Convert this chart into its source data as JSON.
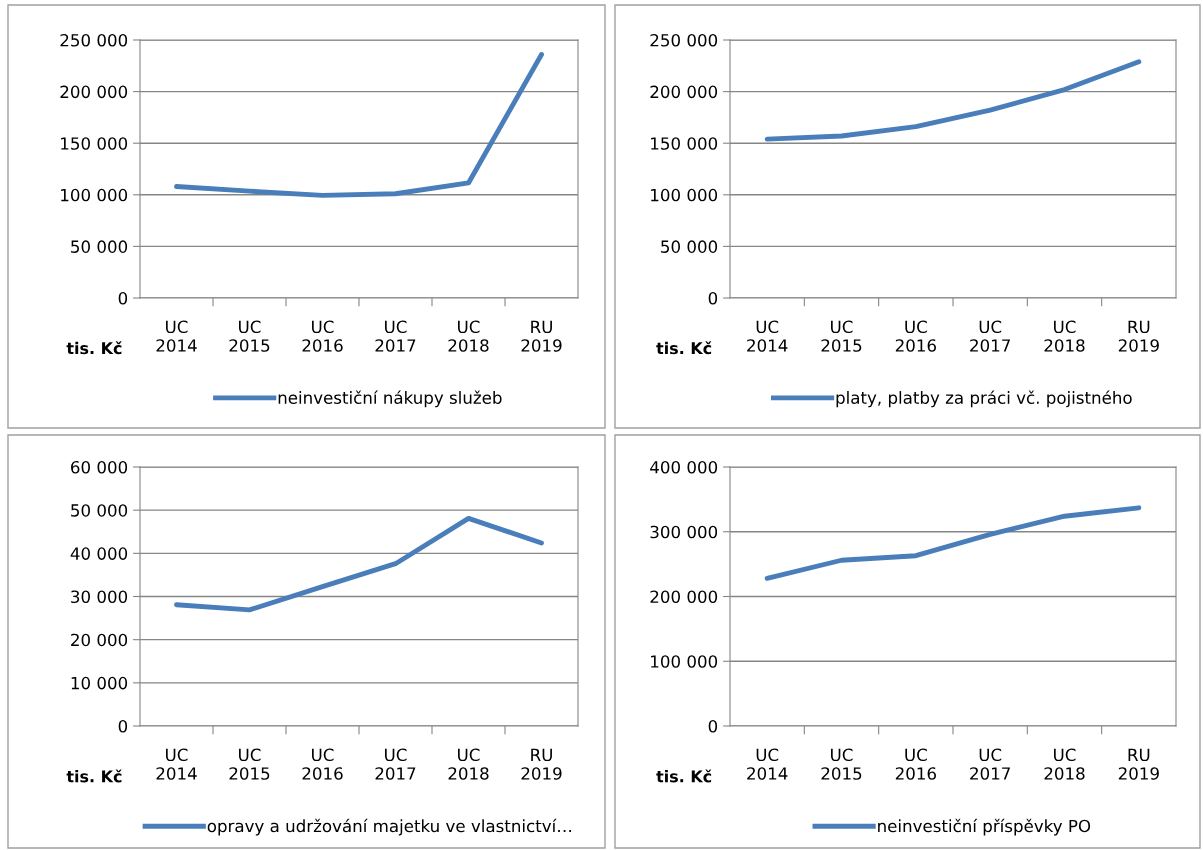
{
  "chart_data": [
    {
      "type": "line",
      "categories": [
        "UC\n2014",
        "UC\n2015",
        "UC\n2016",
        "UC\n2017",
        "UC\n2018",
        "RU\n2019"
      ],
      "series": [
        {
          "name": "neinvestiční nákupy služeb",
          "color": "#4a7ebb",
          "values": [
            108000,
            103500,
            99500,
            101000,
            111500,
            236000
          ]
        }
      ],
      "ylim": [
        0,
        250000
      ],
      "yticks": [
        0,
        {
          "value": 50000,
          "label": "50 000"
        },
        {
          "value": 100000,
          "label": "100 000"
        },
        {
          "value": 150000,
          "label": "150 000"
        },
        {
          "value": 200000,
          "label": "200 000"
        },
        {
          "value": 250000,
          "label": "250 000"
        }
      ],
      "annotations": [
        "tis. Kč"
      ],
      "grid": "y",
      "legend": "bottom",
      "marker": "none",
      "line_style": "solid"
    },
    {
      "type": "line",
      "categories": [
        "UC\n2014",
        "UC\n2015",
        "UC\n2016",
        "UC\n2017",
        "UC\n2018",
        "RU\n2019"
      ],
      "series": [
        {
          "name": "platy, platby za práci vč. pojistného",
          "color": "#4a7ebb",
          "values": [
            154000,
            157000,
            166000,
            182000,
            202000,
            229000
          ]
        }
      ],
      "ylim": [
        0,
        250000
      ],
      "yticks": [
        0,
        {
          "value": 50000,
          "label": "50 000"
        },
        {
          "value": 100000,
          "label": "100 000"
        },
        {
          "value": 150000,
          "label": "150 000"
        },
        {
          "value": 200000,
          "label": "200 000"
        },
        {
          "value": 250000,
          "label": "250 000"
        }
      ],
      "annotations": [
        "tis. Kč"
      ],
      "grid": "y",
      "legend": "bottom",
      "marker": "none",
      "line_style": "solid"
    },
    {
      "type": "line",
      "categories": [
        "UC\n2014",
        "UC\n2015",
        "UC\n2016",
        "UC\n2017",
        "UC\n2018",
        "RU\n2019"
      ],
      "series": [
        {
          "name": "opravy a udržování majetku ve vlastnictví…",
          "color": "#4a7ebb",
          "values": [
            28100,
            26900,
            32300,
            37600,
            48100,
            42400
          ]
        }
      ],
      "ylim": [
        0,
        60000
      ],
      "yticks": [
        0,
        {
          "value": 10000,
          "label": "10 000"
        },
        {
          "value": 20000,
          "label": "20 000"
        },
        {
          "value": 30000,
          "label": "30 000"
        },
        {
          "value": 40000,
          "label": "40 000"
        },
        {
          "value": 50000,
          "label": "50 000"
        },
        {
          "value": 60000,
          "label": "60 000"
        }
      ],
      "annotations": [
        "tis. Kč"
      ],
      "grid": "y",
      "legend": "bottom",
      "marker": "none",
      "line_style": "solid"
    },
    {
      "type": "line",
      "categories": [
        "UC\n2014",
        "UC\n2015",
        "UC\n2016",
        "UC\n2017",
        "UC\n2018",
        "RU\n2019"
      ],
      "series": [
        {
          "name": "neinvestiční příspěvky PO",
          "color": "#4a7ebb",
          "values": [
            228000,
            256000,
            263000,
            296000,
            324000,
            337000
          ]
        }
      ],
      "ylim": [
        0,
        400000
      ],
      "yticks": [
        0,
        {
          "value": 100000,
          "label": "100 000"
        },
        {
          "value": 200000,
          "label": "200 000"
        },
        {
          "value": 300000,
          "label": "300 000"
        },
        {
          "value": 400000,
          "label": "400 000"
        }
      ],
      "annotations": [
        "tis. Kč"
      ],
      "grid": "y",
      "legend": "bottom",
      "marker": "none",
      "line_style": "solid"
    }
  ]
}
